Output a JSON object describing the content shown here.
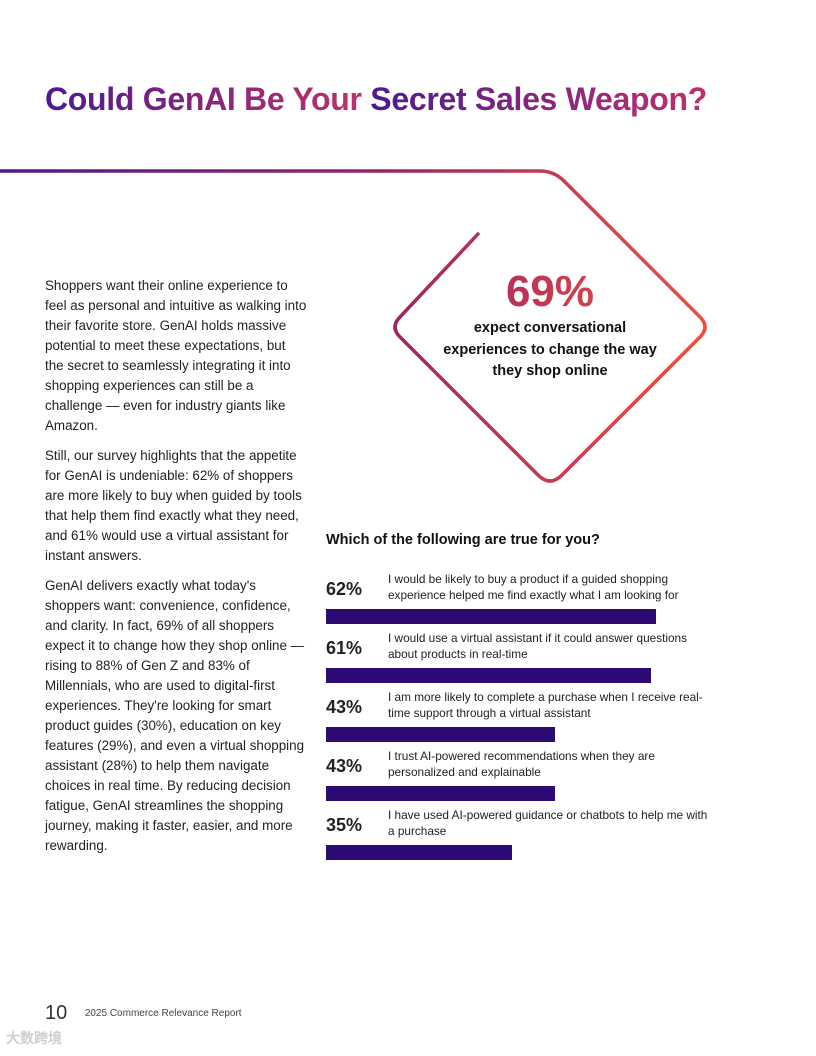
{
  "title": {
    "line1": "Could GenAI Be Your",
    "line2": "Secret Sales Weapon?"
  },
  "colors": {
    "title_start": "#4b1b91",
    "title_end": "#c0306a",
    "bar": "#2d0a73",
    "accent_start": "#9b2465",
    "accent_end": "#f04e3e"
  },
  "body": {
    "paragraphs": [
      "Shoppers want their online experience to feel as personal and intuitive as walking into their favorite store. GenAI holds massive potential to meet these expectations, but the secret to seamlessly integrating it into shopping experiences can still be a challenge — even for industry giants like Amazon.",
      "Still, our survey highlights that the appetite for GenAI is undeniable: 62% of shoppers are more likely to buy when guided by tools that help them find exactly what they need, and 61% would use a virtual assistant for instant answers.",
      "GenAI delivers exactly what today's shoppers want: convenience, confidence, and clarity. In fact, 69% of all shoppers expect it to change how they shop online — rising to 88% of Gen Z and 83% of Millennials, who are used to digital-first experiences. They're looking for smart product guides (30%), education on key features (29%), and even a virtual shopping assistant (28%) to help them navigate choices in real time. By reducing decision fatigue, GenAI streamlines the shopping journey, making it faster, easier, and more rewarding."
    ]
  },
  "callout": {
    "value": "69%",
    "label": "expect conversational experiences  to change the way they shop online"
  },
  "chart_data": {
    "type": "bar",
    "title": "Which of the following are true for you?",
    "orientation": "horizontal",
    "xlim": [
      0,
      100
    ],
    "categories": [
      "I would be likely to buy a product if a guided shopping experience helped me find exactly what I am looking for",
      "I would use a virtual assistant if it could answer questions about products in real-time",
      "I am more likely to complete a purchase when I receive real-time support through a virtual assistant",
      "I trust AI-powered recommendations when they are personalized and explainable",
      "I have used AI-powered guidance or chatbots to help me with a purchase"
    ],
    "values": [
      62,
      61,
      43,
      43,
      35
    ],
    "value_labels": [
      "62%",
      "61%",
      "43%",
      "43%",
      "35%"
    ]
  },
  "footer": {
    "page_number": "10",
    "report_name": "2025 Commerce Relevance Report"
  },
  "watermark": "大数跨境"
}
